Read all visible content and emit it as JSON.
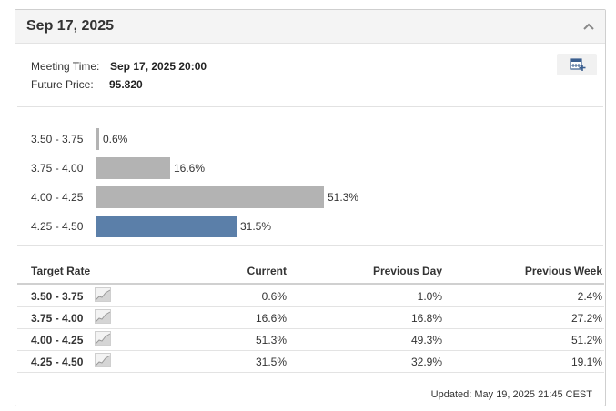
{
  "header": {
    "title": "Sep 17, 2025"
  },
  "meeting": {
    "time_label": "Meeting Time:",
    "time_value": "Sep 17, 2025 20:00",
    "price_label": "Future Price:",
    "price_value": "95.820"
  },
  "chart_data": {
    "type": "bar",
    "orientation": "horizontal",
    "categories": [
      "3.50 - 3.75",
      "3.75 - 4.00",
      "4.00 - 4.25",
      "4.25 - 4.50"
    ],
    "values": [
      0.6,
      16.6,
      51.3,
      31.5
    ],
    "value_labels": [
      "0.6%",
      "16.6%",
      "51.3%",
      "31.5%"
    ],
    "unit": "%",
    "colors": [
      "#b3b3b3",
      "#b3b3b3",
      "#b3b3b3",
      "#5b7fa9"
    ],
    "highlighted_category": "4.25 - 4.50"
  },
  "table": {
    "headers": [
      "Target Rate",
      "Current",
      "Previous Day",
      "Previous Week"
    ],
    "rows": [
      {
        "rate": "3.50 - 3.75",
        "current": "0.6%",
        "prev_day": "1.0%",
        "prev_week": "2.4%"
      },
      {
        "rate": "3.75 - 4.00",
        "current": "16.6%",
        "prev_day": "16.8%",
        "prev_week": "27.2%"
      },
      {
        "rate": "4.00 - 4.25",
        "current": "51.3%",
        "prev_day": "49.3%",
        "prev_week": "51.2%"
      },
      {
        "rate": "4.25 - 4.50",
        "current": "31.5%",
        "prev_day": "32.9%",
        "prev_week": "19.1%"
      }
    ],
    "row_icon": "trend-chart-icon"
  },
  "footer": {
    "updated": "Updated: May 19, 2025 21:45 CEST"
  },
  "icons": {
    "collapse": "chevron-up-icon",
    "calendar": "add-to-calendar-icon"
  }
}
